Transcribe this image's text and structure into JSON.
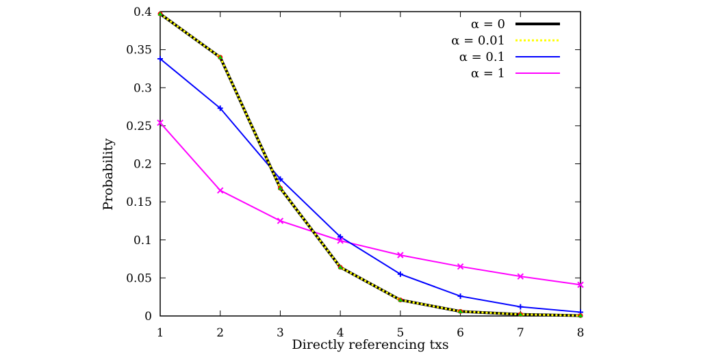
{
  "chart_data": {
    "type": "line",
    "title": "",
    "xlabel": "Directly referencing txs",
    "ylabel": "Probability",
    "x": [
      1,
      2,
      3,
      4,
      5,
      6,
      7,
      8
    ],
    "xlim": [
      1,
      8
    ],
    "ylim": [
      0,
      0.4
    ],
    "xticks": [
      "1",
      "2",
      "3",
      "4",
      "5",
      "6",
      "7",
      "8"
    ],
    "yticks": [
      "0",
      "0.05",
      "0.1",
      "0.15",
      "0.2",
      "0.25",
      "0.3",
      "0.35",
      "0.4"
    ],
    "ytick_values": [
      0,
      0.05,
      0.1,
      0.15,
      0.2,
      0.25,
      0.3,
      0.35,
      0.4
    ],
    "grid": false,
    "legend_position": "top-right",
    "series": [
      {
        "name": "α = 0",
        "color": "#000000",
        "style": "solid-thick",
        "marker": "circle-red",
        "values": [
          0.397,
          0.34,
          0.168,
          0.064,
          0.021,
          0.006,
          0.002,
          0.0005
        ]
      },
      {
        "name": "α = 0.01",
        "color": "#ffff00",
        "style": "dotted",
        "marker": "triangle-green",
        "values": [
          0.397,
          0.34,
          0.168,
          0.064,
          0.021,
          0.006,
          0.002,
          0.0005
        ]
      },
      {
        "name": "α = 0.1",
        "color": "#0000ff",
        "style": "solid",
        "marker": "plus",
        "values": [
          0.338,
          0.273,
          0.18,
          0.104,
          0.055,
          0.026,
          0.012,
          0.005
        ]
      },
      {
        "name": "α = 1",
        "color": "#ff00ff",
        "style": "solid",
        "marker": "cross",
        "values": [
          0.254,
          0.165,
          0.125,
          0.099,
          0.08,
          0.065,
          0.052,
          0.041
        ]
      }
    ]
  }
}
